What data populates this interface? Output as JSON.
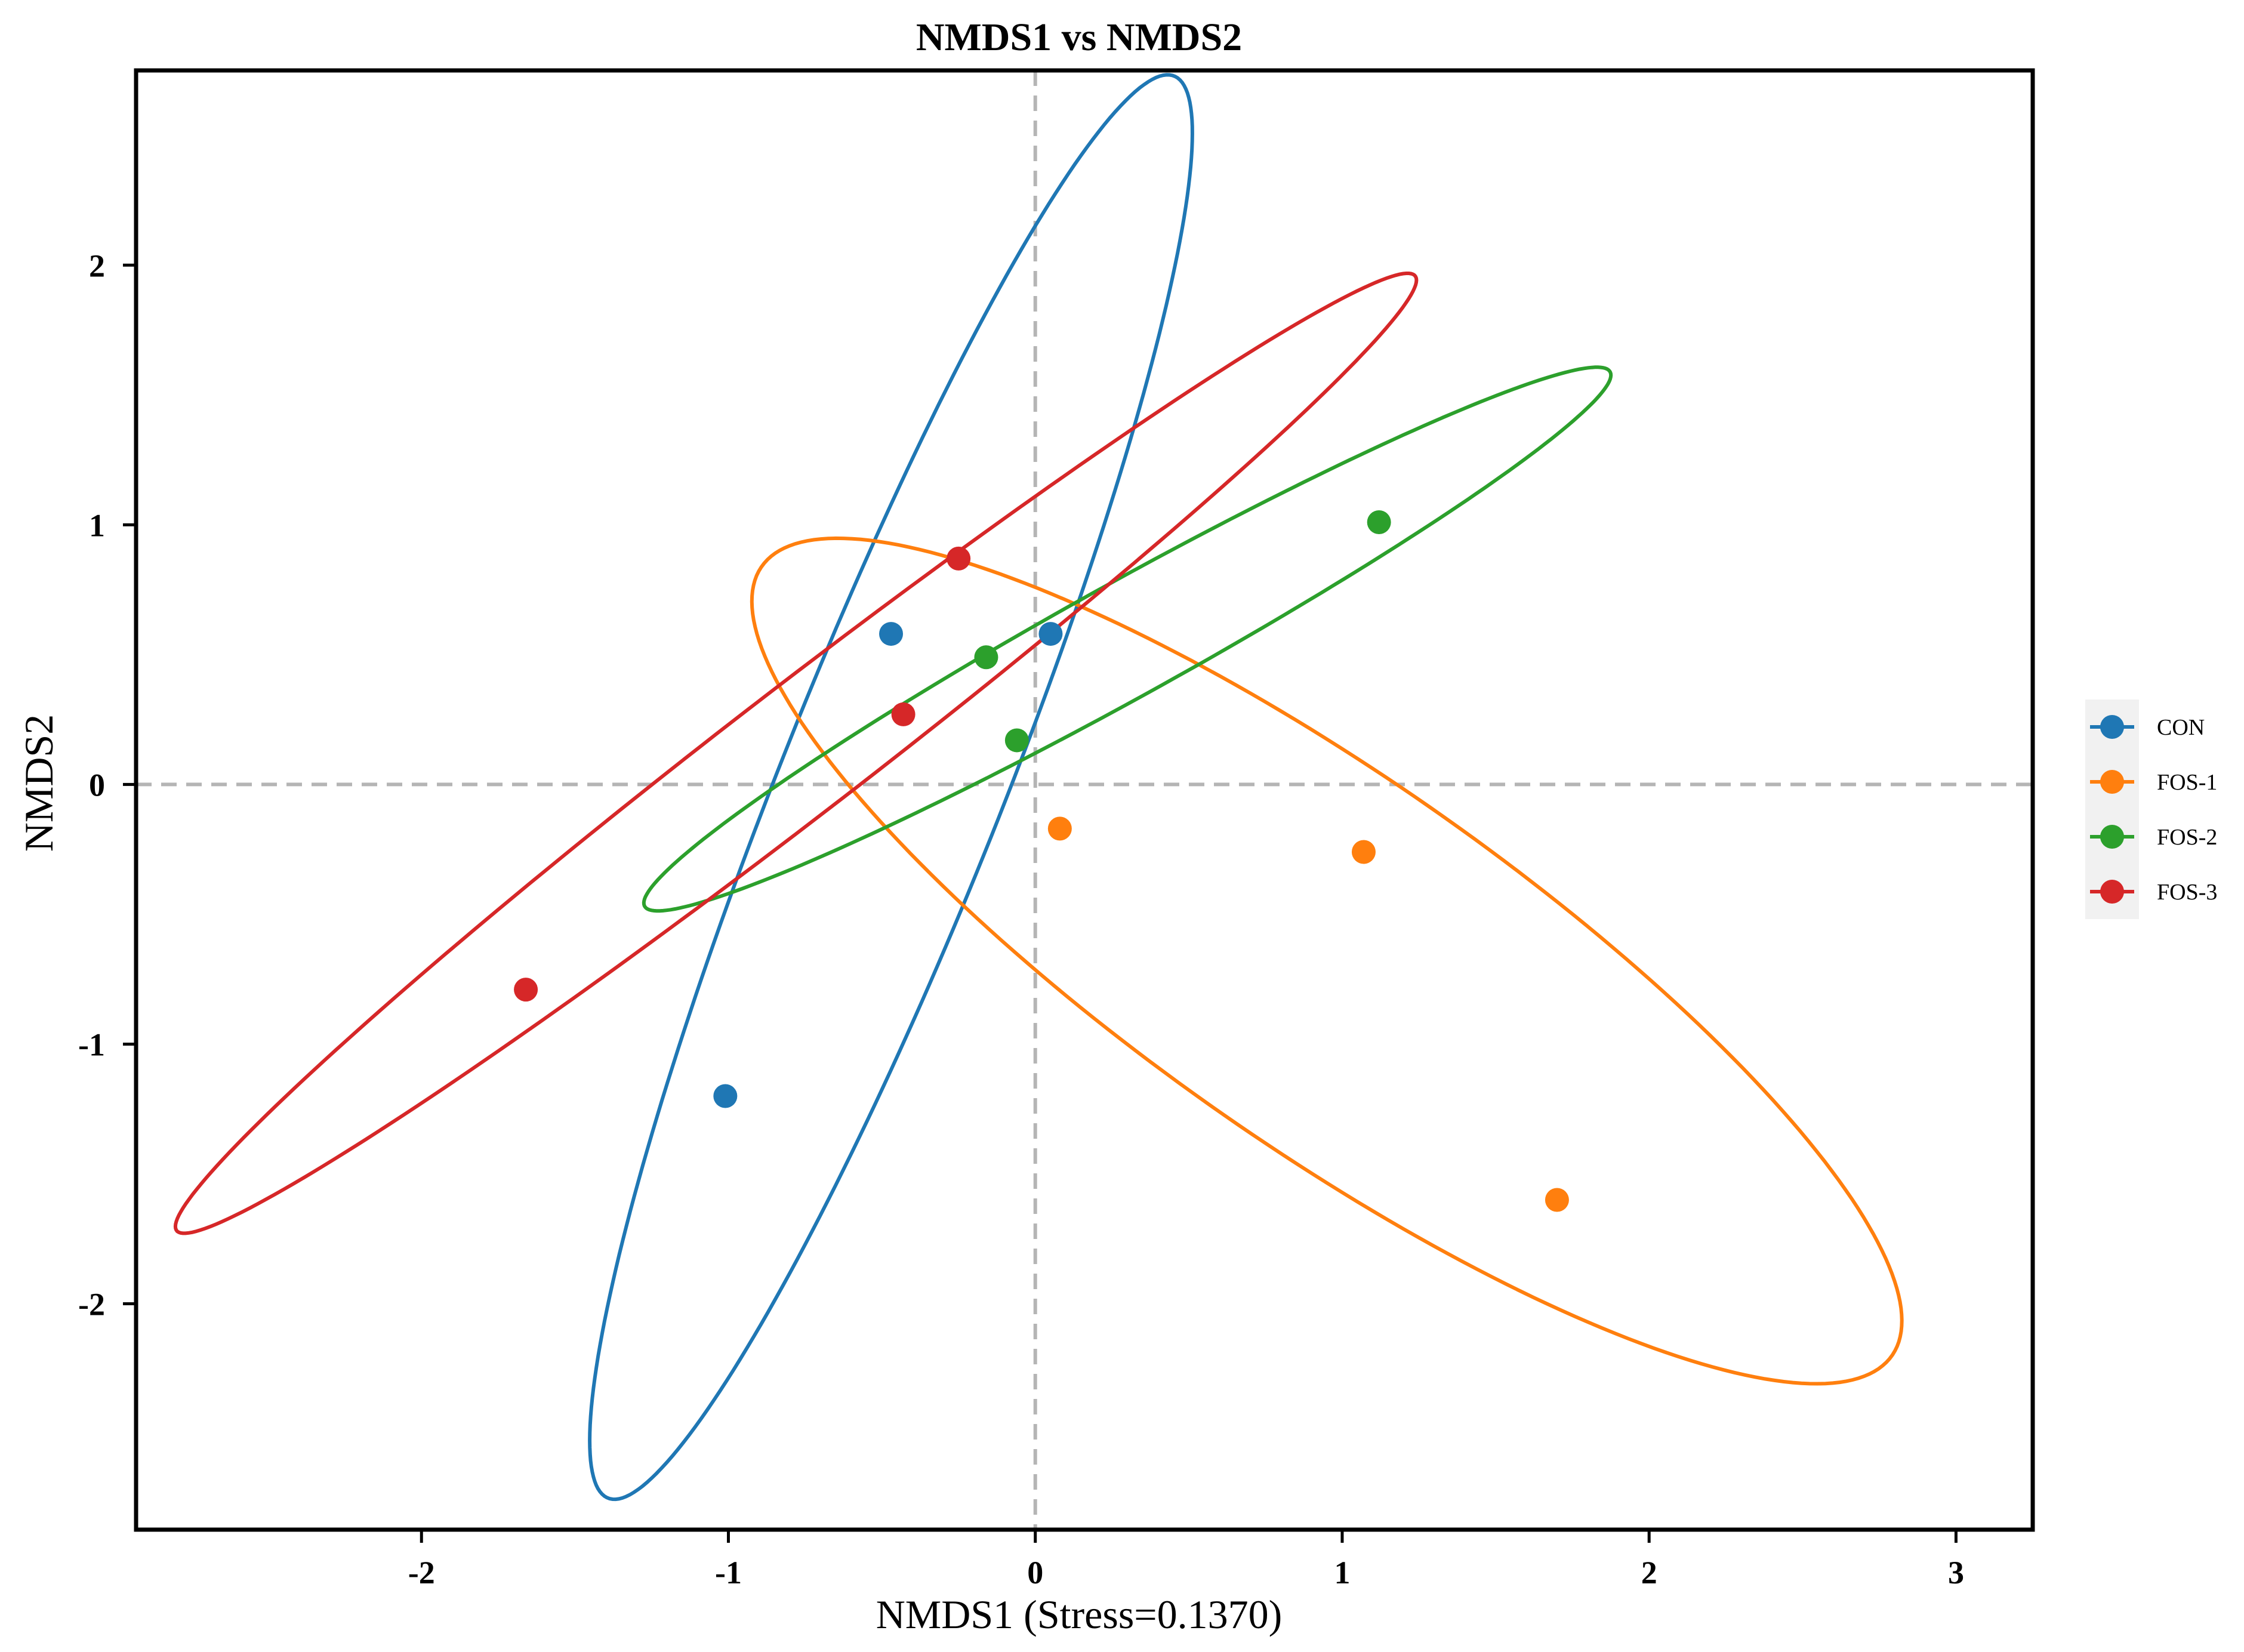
{
  "chart_data": {
    "type": "scatter",
    "title": "NMDS1 vs NMDS2",
    "xlabel": "NMDS1 (Stress=0.1370)",
    "ylabel": "NMDS2",
    "xlim": [
      -2.93,
      3.25
    ],
    "ylim": [
      -2.87,
      2.75
    ],
    "x_ticks": [
      -2,
      -1,
      0,
      1,
      2,
      3
    ],
    "y_ticks": [
      -2,
      -1,
      0,
      1,
      2
    ],
    "reference_lines": {
      "x": 0,
      "y": 0,
      "style": "dashed"
    },
    "legend_position": "right",
    "series": [
      {
        "name": "CON",
        "color": "#1f77b4",
        "points": [
          [
            -0.47,
            0.58
          ],
          [
            0.05,
            0.58
          ],
          [
            -1.01,
            -1.2
          ]
        ],
        "ellipse": {
          "center": [
            -0.47,
            -0.01
          ],
          "semi_major": 2.89,
          "semi_minor": 0.37,
          "angle_deg": 71.5
        }
      },
      {
        "name": "FOS-1",
        "color": "#ff7f0e",
        "points": [
          [
            0.08,
            -0.17
          ],
          [
            1.07,
            -0.26
          ],
          [
            1.7,
            -1.6
          ]
        ],
        "ellipse": {
          "center": [
            0.95,
            -0.68
          ],
          "semi_major": 2.39,
          "semi_minor": 0.67,
          "angle_deg": -40.3
        }
      },
      {
        "name": "FOS-2",
        "color": "#2ca02c",
        "points": [
          [
            -0.16,
            0.49
          ],
          [
            1.12,
            1.01
          ],
          [
            -0.06,
            0.17
          ]
        ],
        "ellipse": {
          "center": [
            0.3,
            0.56
          ],
          "semi_major": 1.88,
          "semi_minor": 0.21,
          "angle_deg": 33.3
        }
      },
      {
        "name": "FOS-3",
        "color": "#d62728",
        "points": [
          [
            -0.25,
            0.87
          ],
          [
            -0.43,
            0.27
          ],
          [
            -1.66,
            -0.79
          ]
        ],
        "ellipse": {
          "center": [
            -0.78,
            0.12
          ],
          "semi_major": 2.73,
          "semi_minor": 0.23,
          "angle_deg": 42.4
        }
      }
    ]
  }
}
